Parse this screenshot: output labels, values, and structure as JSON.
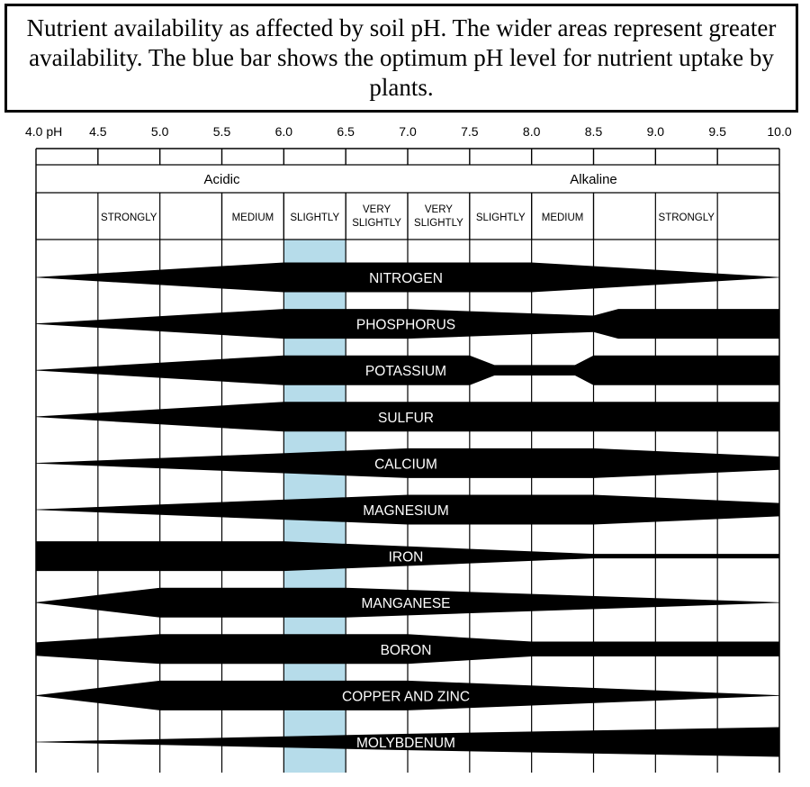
{
  "caption": "Nutrient availability as affected by soil pH. The wider areas represent greater availability. The blue bar shows the optimum pH level for nutrient uptake by plants.",
  "colors": {
    "optimum": "#b6dcea",
    "band": "#000000",
    "grid": "#000000",
    "label": "#ffffff"
  },
  "chart_data": {
    "type": "diagram",
    "axis": {
      "ticks": [
        4.0,
        4.5,
        5.0,
        5.5,
        6.0,
        6.5,
        7.0,
        7.5,
        8.0,
        8.5,
        9.0,
        9.5,
        10.0
      ],
      "tick_labels": [
        "4.0 pH",
        "4.5",
        "5.0",
        "5.5",
        "6.0",
        "6.5",
        "7.0",
        "7.5",
        "8.0",
        "8.5",
        "9.0",
        "9.5",
        "10.0"
      ],
      "range": [
        4.0,
        10.0
      ]
    },
    "regions": [
      {
        "label": "Acidic",
        "from": 4.0,
        "to": 7.0
      },
      {
        "label": "Alkaline",
        "from": 7.0,
        "to": 10.0
      }
    ],
    "intensity": [
      {
        "label": "STRONGLY",
        "from": 4.0,
        "to": 5.5
      },
      {
        "label": "MEDIUM",
        "from": 5.5,
        "to": 6.0
      },
      {
        "label": "SLIGHTLY",
        "from": 6.0,
        "to": 6.5
      },
      {
        "label": "VERY SLIGHTLY",
        "from": 6.5,
        "to": 7.0
      },
      {
        "label": "VERY SLIGHTLY",
        "from": 7.0,
        "to": 7.5
      },
      {
        "label": "SLIGHTLY",
        "from": 7.5,
        "to": 8.0
      },
      {
        "label": "MEDIUM",
        "from": 8.0,
        "to": 8.5
      },
      {
        "label": "STRONGLY",
        "from": 8.5,
        "to": 10.0
      }
    ],
    "optimum_range": [
      6.0,
      6.5
    ],
    "nutrients": [
      {
        "name": "NITROGEN",
        "profile": [
          [
            4.0,
            0.02
          ],
          [
            6.0,
            1.0
          ],
          [
            8.0,
            1.0
          ],
          [
            10.0,
            0.02
          ]
        ]
      },
      {
        "name": "PHOSPHORUS",
        "profile": [
          [
            4.0,
            0.02
          ],
          [
            6.0,
            1.0
          ],
          [
            7.0,
            1.0
          ],
          [
            8.5,
            0.55
          ],
          [
            8.7,
            1.0
          ],
          [
            10.0,
            1.0
          ]
        ]
      },
      {
        "name": "POTASSIUM",
        "profile": [
          [
            4.0,
            0.02
          ],
          [
            6.0,
            1.0
          ],
          [
            7.5,
            1.0
          ],
          [
            7.7,
            0.35
          ],
          [
            8.35,
            0.35
          ],
          [
            8.5,
            1.0
          ],
          [
            10.0,
            1.0
          ]
        ]
      },
      {
        "name": "SULFUR",
        "profile": [
          [
            4.0,
            0.02
          ],
          [
            6.0,
            1.0
          ],
          [
            10.0,
            1.0
          ]
        ]
      },
      {
        "name": "CALCIUM",
        "profile": [
          [
            4.0,
            0.02
          ],
          [
            7.0,
            1.0
          ],
          [
            8.5,
            1.0
          ],
          [
            10.0,
            0.45
          ]
        ]
      },
      {
        "name": "MAGNESIUM",
        "profile": [
          [
            4.0,
            0.02
          ],
          [
            7.0,
            1.0
          ],
          [
            8.5,
            1.0
          ],
          [
            10.0,
            0.45
          ]
        ]
      },
      {
        "name": "IRON",
        "profile": [
          [
            4.0,
            1.0
          ],
          [
            6.0,
            1.0
          ],
          [
            8.5,
            0.15
          ],
          [
            10.0,
            0.15
          ]
        ]
      },
      {
        "name": "MANGANESE",
        "profile": [
          [
            4.0,
            0.02
          ],
          [
            5.0,
            1.0
          ],
          [
            6.5,
            1.0
          ],
          [
            10.0,
            0.02
          ]
        ]
      },
      {
        "name": "BORON",
        "profile": [
          [
            4.0,
            0.45
          ],
          [
            5.0,
            1.0
          ],
          [
            7.0,
            1.0
          ],
          [
            8.0,
            0.5
          ],
          [
            10.0,
            0.5
          ]
        ]
      },
      {
        "name": "COPPER AND ZINC",
        "profile": [
          [
            4.0,
            0.02
          ],
          [
            5.0,
            1.0
          ],
          [
            7.0,
            1.0
          ],
          [
            10.0,
            0.02
          ]
        ]
      },
      {
        "name": "MOLYBDENUM",
        "profile": [
          [
            4.0,
            0.02
          ],
          [
            7.0,
            0.55
          ],
          [
            10.0,
            1.0
          ]
        ]
      }
    ]
  }
}
